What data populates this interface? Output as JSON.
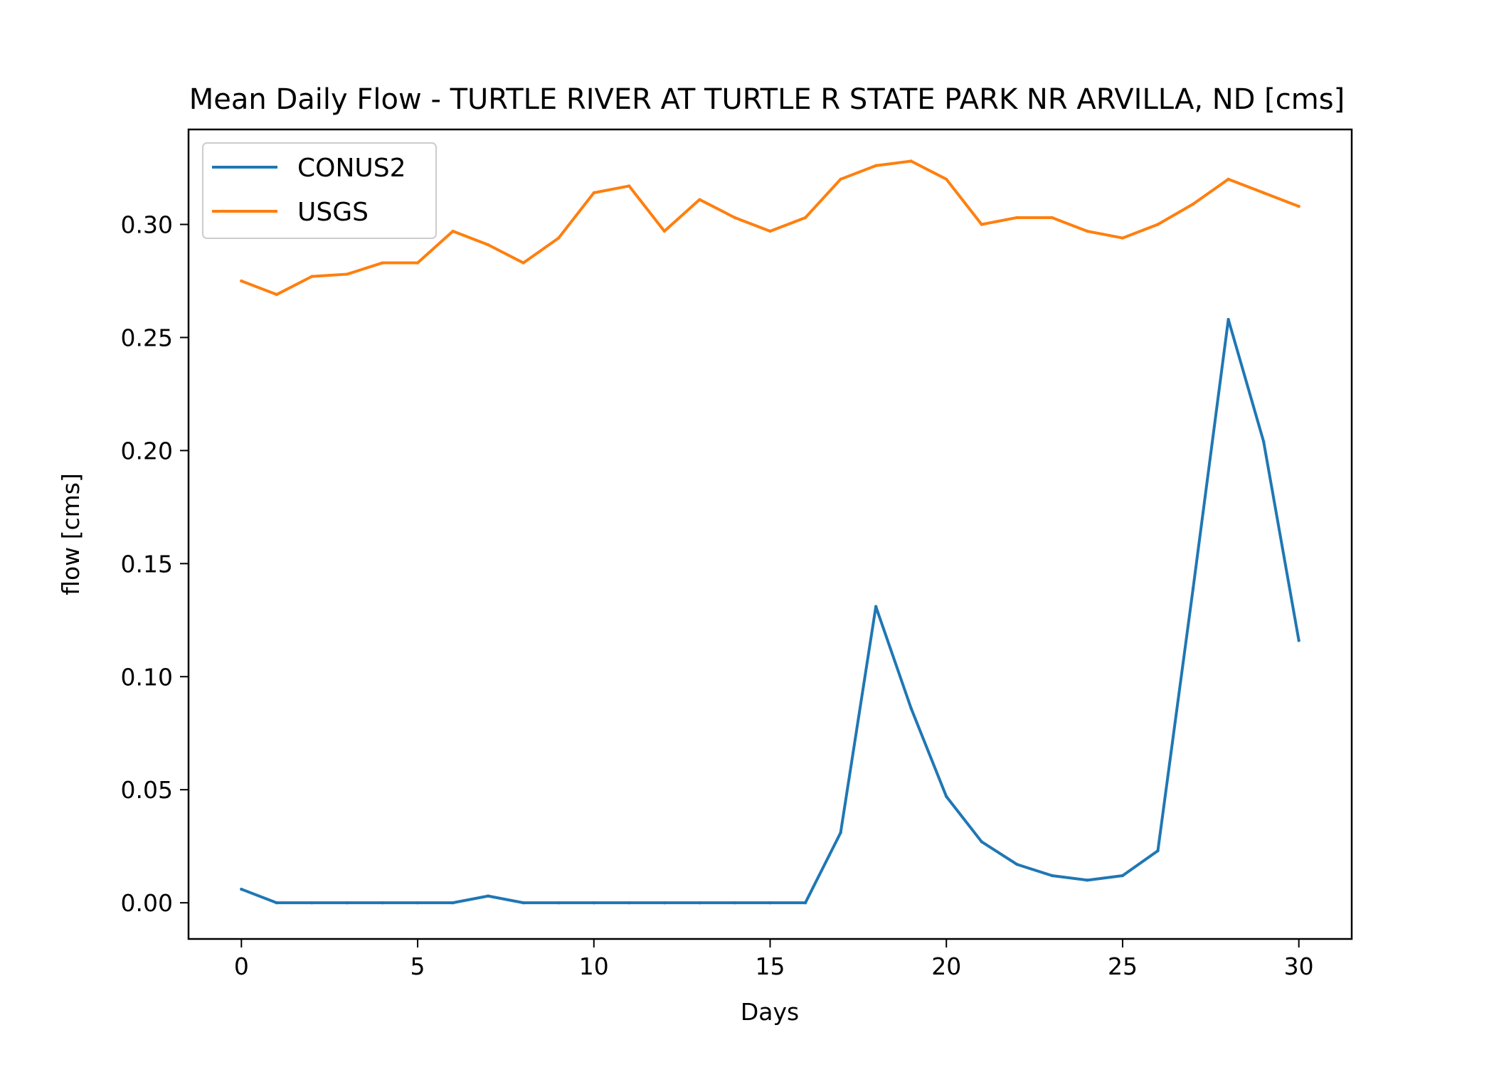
{
  "chart_data": {
    "type": "line",
    "title": "Mean Daily Flow - TURTLE RIVER AT TURTLE R STATE PARK NR ARVILLA, ND [cms]",
    "xlabel": "Days",
    "ylabel": "flow [cms]",
    "xlim": [
      -1.5,
      31.5
    ],
    "ylim": [
      -0.016,
      0.342
    ],
    "xticks": [
      0,
      5,
      10,
      15,
      20,
      25,
      30
    ],
    "xtick_labels": [
      "0",
      "5",
      "10",
      "15",
      "20",
      "25",
      "30"
    ],
    "yticks": [
      0.0,
      0.05,
      0.1,
      0.15,
      0.2,
      0.25,
      0.3
    ],
    "ytick_labels": [
      "0.00",
      "0.05",
      "0.10",
      "0.15",
      "0.20",
      "0.25",
      "0.30"
    ],
    "grid": false,
    "legend_position": "top-left",
    "x": [
      0,
      1,
      2,
      3,
      4,
      5,
      6,
      7,
      8,
      9,
      10,
      11,
      12,
      13,
      14,
      15,
      16,
      17,
      18,
      19,
      20,
      21,
      22,
      23,
      24,
      25,
      26,
      27,
      28,
      29,
      30
    ],
    "series": [
      {
        "name": "CONUS2",
        "color": "#1f77b4",
        "values": [
          0.006,
          0.0,
          0.0,
          0.0,
          0.0,
          0.0,
          0.0,
          0.003,
          0.0,
          0.0,
          0.0,
          0.0,
          0.0,
          0.0,
          0.0,
          0.0,
          0.0,
          0.031,
          0.131,
          0.086,
          0.047,
          0.027,
          0.017,
          0.012,
          0.01,
          0.012,
          0.023,
          0.139,
          0.258,
          0.204,
          0.116
        ]
      },
      {
        "name": "USGS",
        "color": "#ff7f0e",
        "values": [
          0.275,
          0.269,
          0.277,
          0.278,
          0.283,
          0.283,
          0.297,
          0.291,
          0.283,
          0.294,
          0.314,
          0.317,
          0.297,
          0.311,
          0.303,
          0.297,
          0.303,
          0.32,
          0.326,
          0.328,
          0.32,
          0.3,
          0.303,
          0.303,
          0.297,
          0.294,
          0.3,
          0.309,
          0.32,
          0.314,
          0.308
        ]
      }
    ]
  }
}
